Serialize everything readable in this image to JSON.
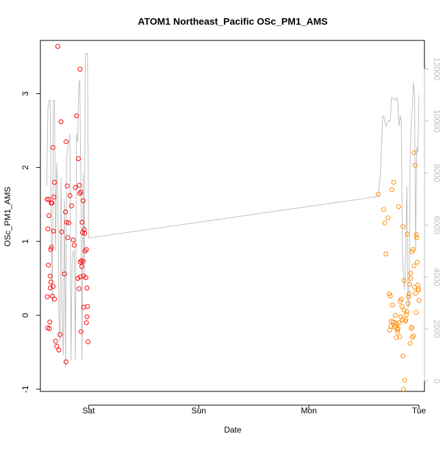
{
  "chart_data": {
    "type": "scatter",
    "title": "ATOM1 Northeast_Pacific OSc_PM1_AMS",
    "xlabel": "Date",
    "ylabel": "OSc_PM1_AMS",
    "x_ticks": [
      "Sat",
      "Sun",
      "Mon",
      "Tue"
    ],
    "x_tick_values": [
      0,
      1,
      2,
      3
    ],
    "xlim": [
      -0.438,
      3.05
    ],
    "y_ticks": [
      "-1",
      "0",
      "1",
      "2",
      "3"
    ],
    "y_tick_values": [
      -1,
      0,
      1,
      2,
      3
    ],
    "ylim": [
      -1.03,
      3.72
    ],
    "y2_ticks": [
      "0",
      "2000",
      "4000",
      "6000",
      "8000",
      "10000",
      "12000"
    ],
    "y2_tick_values": [
      0,
      2000,
      4000,
      6000,
      8000,
      10000,
      12000
    ],
    "y2lim": [
      -400,
      13100
    ],
    "series": [
      {
        "color": "#ff0000",
        "x": [
          -0.378,
          -0.37,
          -0.375,
          -0.365,
          -0.35,
          -0.345,
          -0.337,
          -0.36,
          -0.333,
          -0.32,
          -0.315,
          -0.28,
          -0.31,
          -0.355,
          -0.325,
          -0.34,
          -0.352,
          -0.348,
          -0.362,
          -0.372,
          -0.343,
          -0.33,
          -0.322,
          -0.31,
          -0.3,
          -0.29,
          -0.27,
          -0.26,
          -0.245,
          -0.25,
          -0.22,
          -0.205,
          -0.195,
          -0.12,
          -0.155,
          -0.18,
          -0.17,
          -0.14,
          -0.13,
          -0.205,
          -0.19,
          -0.2,
          -0.21,
          -0.11,
          -0.078,
          -0.093,
          -0.08,
          -0.07,
          -0.085,
          -0.05,
          -0.06,
          -0.04,
          -0.055,
          -0.035,
          -0.065,
          -0.075,
          -0.088,
          -0.098,
          -0.076,
          -0.015,
          -0.025,
          -0.02,
          -0.033,
          -0.05,
          -0.062,
          -0.07,
          -0.015,
          -0.02,
          -0.045,
          -0.01,
          -0.005,
          -0.045
        ],
        "y": [
          1.57,
          1.17,
          0.25,
          0.68,
          0.53,
          0.89,
          0.92,
          1.35,
          1.52,
          1.14,
          1.6,
          3.64,
          1.8,
          -0.18,
          2.27,
          1.52,
          -0.09,
          0.37,
          1.57,
          -0.17,
          0.45,
          0.26,
          0.39,
          0.22,
          -0.35,
          -0.42,
          -0.47,
          -0.26,
          1.13,
          2.62,
          0.56,
          2.35,
          1.75,
          1.73,
          1.48,
          1.25,
          1.62,
          1.02,
          0.95,
          -0.63,
          1.05,
          1.26,
          1.4,
          2.7,
          3.33,
          2.12,
          1.65,
          1.67,
          1.76,
          1.55,
          1.26,
          1.16,
          1.12,
          1.11,
          0.74,
          0.72,
          0.36,
          0.5,
          0.52,
          0.37,
          0.51,
          0.89,
          0.87,
          0.73,
          0.66,
          -0.22,
          -0.02,
          -0.1,
          0.11,
          0.12,
          -0.36,
          0.53
        ]
      },
      {
        "color": "#ff8c00",
        "x": [
          2.63,
          2.68,
          2.69,
          2.7,
          2.73,
          2.74,
          2.75,
          2.76,
          2.77,
          2.79,
          2.8,
          2.81,
          2.82,
          2.83,
          2.84,
          2.85,
          2.86,
          2.87,
          2.88,
          2.89,
          2.9,
          2.91,
          2.92,
          2.93,
          2.94,
          2.95,
          2.96,
          2.97,
          2.98,
          2.99,
          3.0,
          2.72,
          2.735,
          2.745,
          2.755,
          2.765,
          2.775,
          2.785,
          2.795,
          2.805,
          2.815,
          2.825,
          2.835,
          2.845,
          2.855,
          2.865,
          2.875,
          2.885,
          2.895,
          2.905,
          2.915,
          2.925,
          2.935,
          2.945,
          2.955,
          2.965,
          2.975,
          2.985,
          2.995,
          2.785,
          2.805,
          2.865,
          2.935,
          2.975,
          2.995,
          2.855,
          2.925,
          2.955
        ],
        "y": [
          1.64,
          1.43,
          1.25,
          0.83,
          0.29,
          0.26,
          -0.08,
          0.14,
          1.8,
          -0.15,
          -0.12,
          -0.18,
          -0.1,
          0.19,
          0.22,
          -0.06,
          -1.0,
          -0.88,
          -0.06,
          0.05,
          0.16,
          0.29,
          -0.38,
          -0.18,
          -0.3,
          -0.28,
          0.38,
          0.3,
          1.05,
          0.41,
          0.2,
          1.32,
          -0.2,
          -0.15,
          1.7,
          -0.09,
          -0.16,
          -0.1,
          -0.3,
          -0.22,
          1.47,
          -0.29,
          -0.02,
          0.12,
          1.2,
          0.07,
          -0.08,
          0.01,
          1.1,
          0.25,
          0.42,
          0.5,
          0.86,
          0.89,
          2.2,
          2.03,
          1.09,
          0.72,
          0.34,
          0.0,
          -0.19,
          0.47,
          -0.16,
          0.04,
          0.36,
          -0.55,
          0.57,
          0.67
        ]
      },
      {
        "color": "#bebebe",
        "axis": "right",
        "x": [
          -0.38,
          -0.37,
          -0.36,
          -0.35,
          -0.34,
          -0.33,
          -0.32,
          -0.31,
          -0.3,
          -0.29,
          -0.28,
          -0.27,
          -0.26,
          -0.25,
          -0.24,
          -0.23,
          -0.22,
          -0.21,
          -0.2,
          -0.19,
          -0.18,
          -0.17,
          -0.16,
          -0.15,
          -0.14,
          -0.13,
          -0.12,
          -0.11,
          -0.1,
          -0.09,
          -0.08,
          -0.07,
          -0.06,
          -0.05,
          -0.04,
          -0.03,
          -0.02,
          -0.01,
          0.0,
          2.63,
          2.65,
          2.66,
          2.67,
          2.68,
          2.69,
          2.7,
          2.72,
          2.74,
          2.75,
          2.76,
          2.78,
          2.79,
          2.8,
          2.81,
          2.82,
          2.83,
          2.84,
          2.85,
          2.86,
          2.87,
          2.88,
          2.89,
          2.9,
          2.91,
          2.92,
          2.93,
          2.94,
          2.95,
          2.96,
          2.97,
          2.98,
          2.99,
          3.0
        ],
        "y": [
          7500,
          10400,
          10800,
          10800,
          6200,
          3000,
          10800,
          10800,
          5000,
          8400,
          7200,
          2500,
          1500,
          7800,
          2500,
          1000,
          7000,
          500,
          8500,
          9000,
          9200,
          9500,
          800,
          4500,
          5000,
          5000,
          800,
          9500,
          9200,
          11300,
          11600,
          7000,
          800,
          8000,
          4000,
          12600,
          12600,
          12600,
          5500,
          7100,
          8000,
          9000,
          10200,
          10200,
          10000,
          9800,
          10000,
          10000,
          10900,
          10900,
          10800,
          10800,
          10900,
          10600,
          9800,
          10200,
          10000,
          5000,
          4000,
          3500,
          5200,
          7500,
          2800,
          3000,
          8500,
          10000,
          10500,
          11500,
          11000,
          5000,
          9000,
          8800,
          11000
        ]
      }
    ]
  }
}
